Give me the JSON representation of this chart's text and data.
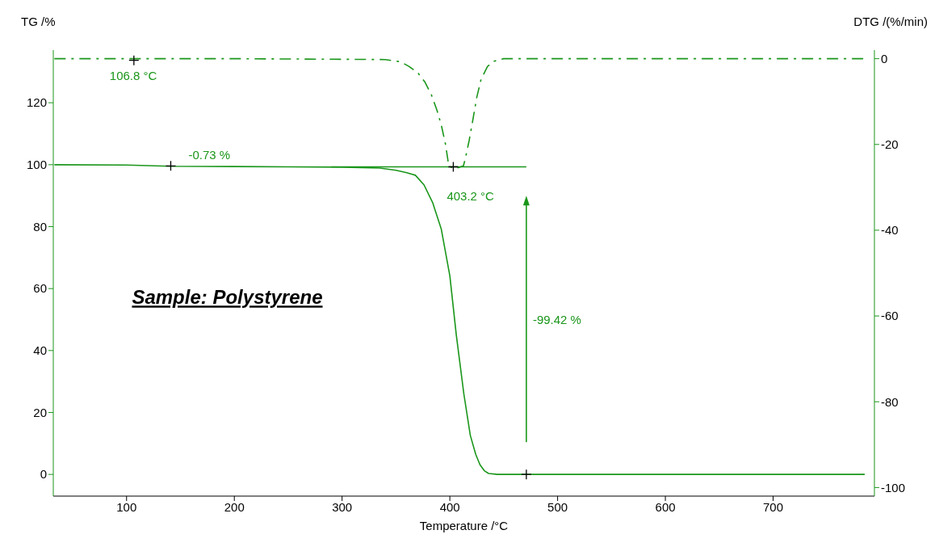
{
  "chart_data": {
    "type": "line",
    "xlabel": "Temperature /°C",
    "ylabel": "TG /%",
    "y2label": "DTG /(%/min)",
    "xlim": [
      32,
      794
    ],
    "xticks": [
      100,
      200,
      300,
      400,
      500,
      600,
      700
    ],
    "ylim": [
      -7,
      137
    ],
    "yticks": [
      0,
      20,
      40,
      60,
      80,
      100,
      120
    ],
    "y2lim": [
      -102,
      2
    ],
    "y2ticks": [
      0,
      -20,
      -40,
      -60,
      -80,
      -100
    ],
    "marker": "none",
    "series": [
      {
        "color": "#1a961a",
        "line_style": "solid",
        "x": [
          33,
          100,
          140,
          200,
          250,
          300,
          335,
          350,
          360,
          368,
          376,
          384,
          392,
          400,
          406,
          413,
          419,
          424,
          428,
          432,
          436,
          444,
          460,
          500,
          600,
          700,
          785
        ],
        "values": [
          100,
          99.9,
          99.5,
          99.4,
          99.3,
          99.2,
          98.9,
          98.2,
          97.4,
          96.6,
          93.5,
          87.8,
          79.3,
          64.1,
          45,
          26,
          12.6,
          6.5,
          3.1,
          1.2,
          0.3,
          0,
          0,
          0,
          0,
          0,
          0
        ]
      },
      {
        "type": "scatter",
        "color": "#000000",
        "marker": "cross",
        "x": [
          471
        ],
        "values": [
          0
        ]
      },
      {
        "color": "#1a961a",
        "line_style": "solid",
        "x": [
          290,
          471
        ],
        "values": [
          99.3,
          99.3
        ]
      },
      {
        "color": "#1a961a",
        "line_style": "dashed",
        "axis": "y2",
        "x": [
          33,
          200,
          340,
          354,
          362,
          370,
          377,
          383,
          388,
          392,
          396,
          399,
          403.2,
          408,
          412.6,
          414,
          418,
          421,
          425,
          429,
          435,
          441,
          450,
          600,
          785
        ],
        "values": [
          0,
          0,
          -0.2,
          -0.7,
          -1.8,
          -3.2,
          -5.5,
          -8.5,
          -12,
          -15.4,
          -20,
          -25,
          -25.6,
          -25.4,
          -25,
          -23.7,
          -19,
          -14.8,
          -9,
          -4.8,
          -1.8,
          -0.6,
          0,
          0,
          0
        ]
      }
    ],
    "annotations": [
      {
        "text": "106.8 °C",
        "x": 106.8,
        "y": 133.7
      },
      {
        "text": "-0.73 %",
        "x": 141,
        "y": 99.6
      },
      {
        "text": "403.2 °C",
        "x": 403.2,
        "y": 99.3
      },
      "-99.42 %",
      "Sample: Polystyrene"
    ]
  }
}
